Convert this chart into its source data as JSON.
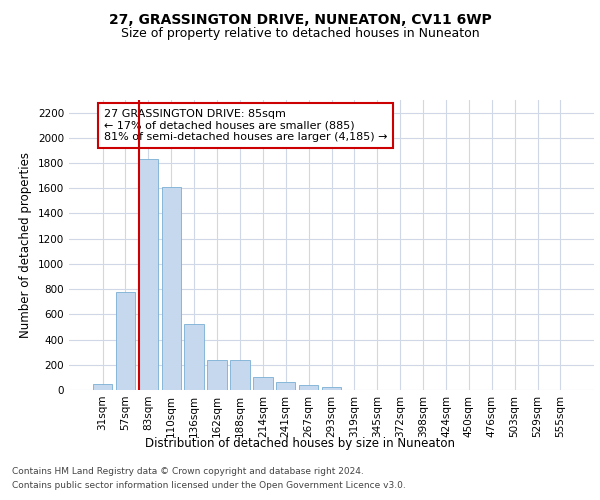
{
  "title": "27, GRASSINGTON DRIVE, NUNEATON, CV11 6WP",
  "subtitle": "Size of property relative to detached houses in Nuneaton",
  "xlabel": "Distribution of detached houses by size in Nuneaton",
  "ylabel": "Number of detached properties",
  "categories": [
    "31sqm",
    "57sqm",
    "83sqm",
    "110sqm",
    "136sqm",
    "162sqm",
    "188sqm",
    "214sqm",
    "241sqm",
    "267sqm",
    "293sqm",
    "319sqm",
    "345sqm",
    "372sqm",
    "398sqm",
    "424sqm",
    "450sqm",
    "476sqm",
    "503sqm",
    "529sqm",
    "555sqm"
  ],
  "values": [
    50,
    780,
    1830,
    1610,
    520,
    235,
    235,
    105,
    60,
    40,
    20,
    0,
    0,
    0,
    0,
    0,
    0,
    0,
    0,
    0,
    0
  ],
  "bar_color": "#c5d8ee",
  "bar_edge_color": "#7aafd4",
  "vline_color": "#cc0000",
  "annotation_text": "27 GRASSINGTON DRIVE: 85sqm\n← 17% of detached houses are smaller (885)\n81% of semi-detached houses are larger (4,185) →",
  "annotation_box_color": "#cc0000",
  "ylim": [
    0,
    2300
  ],
  "yticks": [
    0,
    200,
    400,
    600,
    800,
    1000,
    1200,
    1400,
    1600,
    1800,
    2000,
    2200
  ],
  "footer_line1": "Contains HM Land Registry data © Crown copyright and database right 2024.",
  "footer_line2": "Contains public sector information licensed under the Open Government Licence v3.0.",
  "bg_color": "#ffffff",
  "grid_color": "#d0d8e8",
  "title_fontsize": 10,
  "subtitle_fontsize": 9,
  "axis_label_fontsize": 8.5,
  "tick_fontsize": 7.5,
  "footer_fontsize": 6.5
}
